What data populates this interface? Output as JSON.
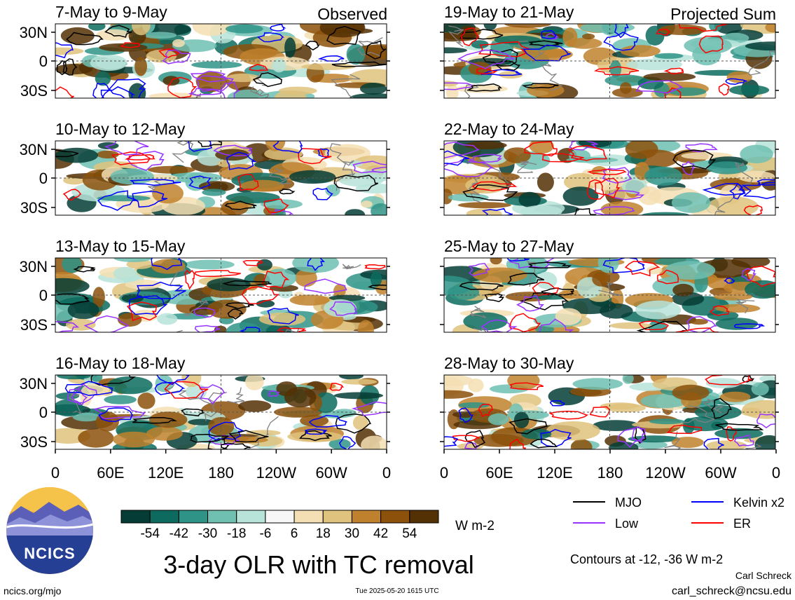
{
  "chart_data": {
    "type": "heatmap",
    "title": "3-day OLR with TC removal",
    "columns": [
      {
        "label": "Observed",
        "panels": [
          "7-May to 9-May",
          "10-May to 12-May",
          "13-May to 15-May",
          "16-May to 18-May"
        ]
      },
      {
        "label": "Projected Sum",
        "panels": [
          "19-May to 21-May",
          "22-May to 24-May",
          "25-May to 27-May",
          "28-May to 30-May"
        ]
      }
    ],
    "y_ticks": [
      "30N",
      "0",
      "30S"
    ],
    "x_ticks": [
      "0",
      "60E",
      "120E",
      "180",
      "120W",
      "60W",
      "0"
    ],
    "colorbar": {
      "unit": "W m-2",
      "tick_labels": [
        "-54",
        "-42",
        "-30",
        "-18",
        "-6",
        "6",
        "18",
        "30",
        "42",
        "54"
      ],
      "colors": [
        "#053d36",
        "#0c6b5e",
        "#2f9487",
        "#6fc0b1",
        "#b7e3d9",
        "#f7f7f7",
        "#f4dfb4",
        "#dfc27d",
        "#bf812d",
        "#8c510a",
        "#543005"
      ]
    },
    "legend": {
      "position": "bottom-right",
      "entries": [
        {
          "name": "MJO",
          "color": "#000000"
        },
        {
          "name": "Kelvin x2",
          "color": "#0000ff"
        },
        {
          "name": "Low",
          "color": "#9933ff"
        },
        {
          "name": "ER",
          "color": "#ff0000"
        }
      ]
    },
    "contour_note": "Contours at -12, -36 W m-2"
  },
  "footer": {
    "logo_text": "NCICS",
    "url": "ncics.org/mjo",
    "timestamp": "Tue 2025-05-20 1615 UTC",
    "author": "Carl Schreck",
    "email": "carl_schreck@ncsu.edu"
  }
}
